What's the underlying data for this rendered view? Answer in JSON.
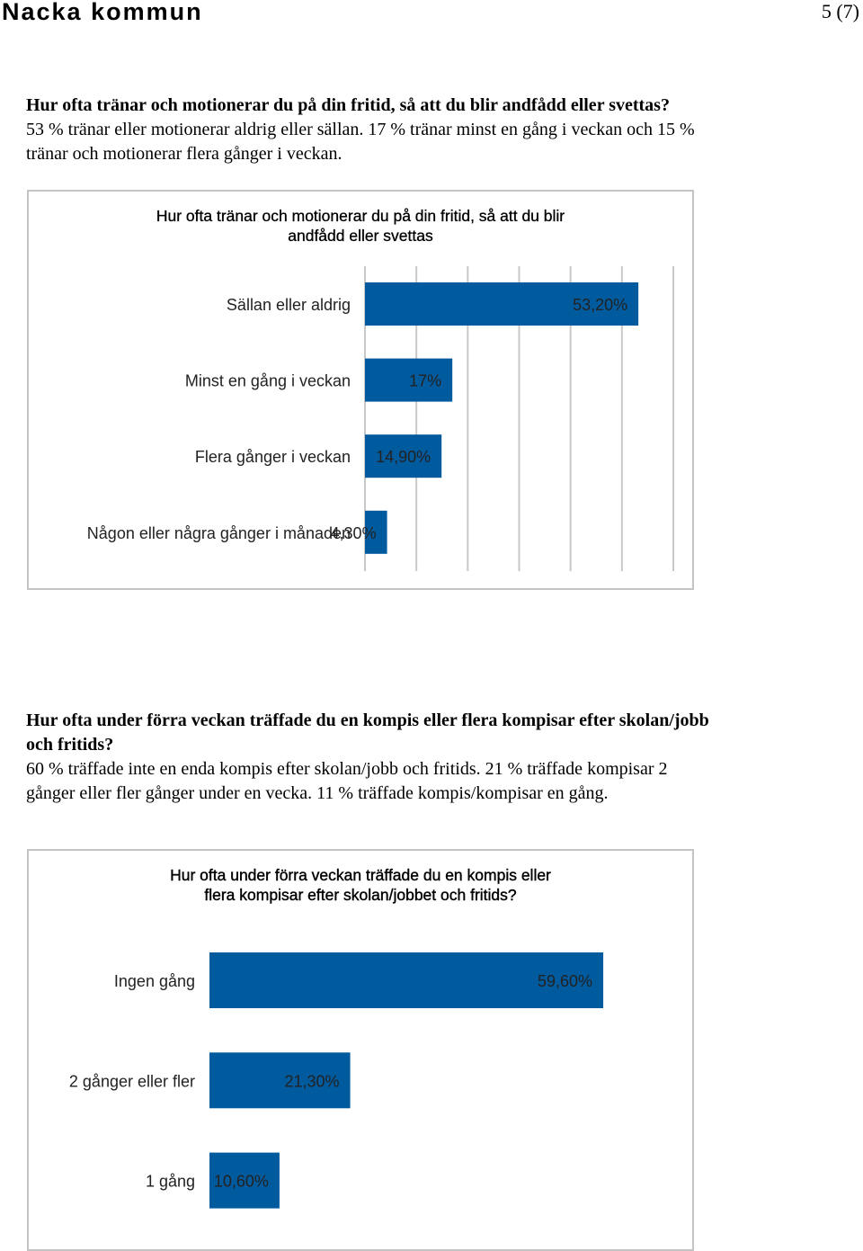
{
  "header": {
    "title": "Nacka kommun",
    "page": "5 (7)"
  },
  "section1": {
    "question": "Hur ofta tränar och motionerar du på din fritid, så att du blir andfådd eller svettas?",
    "summary_line1": "53 % tränar eller motionerar aldrig eller sällan. 17 % tränar minst en gång i veckan och 15 %",
    "summary_line2": "tränar och motionerar flera gånger i veckan."
  },
  "section2": {
    "question_line1": "Hur ofta under förra veckan träffade du en kompis eller flera kompisar efter skolan/jobb",
    "question_line2": "och fritids?",
    "summary_line1": "60 % träffade inte en enda kompis efter skolan/jobb och fritids. 21 % träffade kompisar 2",
    "summary_line2": "gånger eller fler gånger under en vecka. 11 % träffade kompis/kompisar en gång."
  },
  "colors": {
    "bar": "#005a9e",
    "grid": "#c8c8c8",
    "border": "#c4c4c4"
  },
  "chart_data": [
    {
      "type": "bar",
      "orientation": "horizontal",
      "title_line1": "Hur ofta tränar och motionerar du på din fritid, så att du blir",
      "title_line2": "andfådd eller svettas",
      "categories": [
        "Sällan eller aldrig",
        "Minst en gång i veckan",
        "Flera gånger i veckan",
        "Någon eller några gånger i månaden"
      ],
      "values": [
        53.2,
        17,
        14.9,
        4.3
      ],
      "labels": [
        "53,20%",
        "17%",
        "14,90%",
        "4,30%"
      ],
      "xlim": [
        0,
        60
      ],
      "grid": true,
      "legend": "none"
    },
    {
      "type": "bar",
      "orientation": "horizontal",
      "title_line1": "Hur ofta under förra veckan träffade du en kompis eller",
      "title_line2": "flera kompisar efter skolan/jobbet och fritids?",
      "categories": [
        "Ingen gång",
        "2 gånger eller fler",
        "1 gång"
      ],
      "values": [
        59.6,
        21.3,
        10.6
      ],
      "labels": [
        "59,60%",
        "21,30%",
        "10,60%"
      ],
      "xlim": [
        0,
        60
      ],
      "grid": false,
      "legend": "none"
    }
  ]
}
